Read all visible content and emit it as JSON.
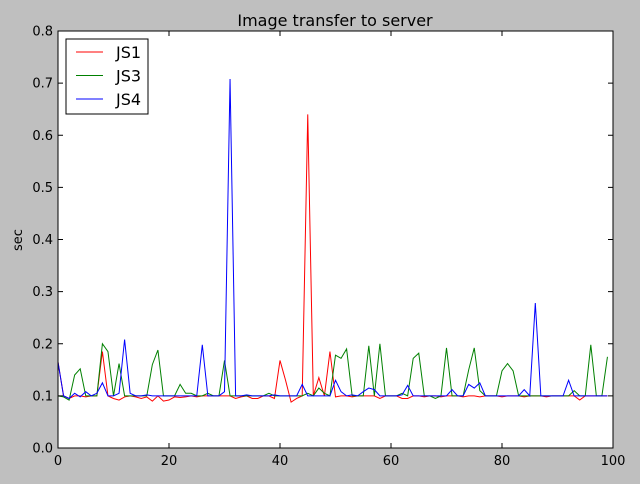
{
  "chart_data": {
    "type": "line",
    "title": "Image transfer to server",
    "xlabel": "",
    "ylabel": "sec",
    "xlim": [
      0,
      100
    ],
    "ylim": [
      0.0,
      0.8
    ],
    "xticks": [
      0,
      20,
      40,
      60,
      80,
      100
    ],
    "xtick_labels": [
      "0",
      "20",
      "40",
      "60",
      "80",
      "100"
    ],
    "yticks": [
      0.0,
      0.1,
      0.2,
      0.3,
      0.4,
      0.5,
      0.6,
      0.7,
      0.8
    ],
    "ytick_labels": [
      "0.0",
      "0.1",
      "0.2",
      "0.3",
      "0.4",
      "0.5",
      "0.6",
      "0.7",
      "0.8"
    ],
    "grid": false,
    "legend_position": "top-left",
    "x": [
      0,
      1,
      2,
      3,
      4,
      5,
      6,
      7,
      8,
      9,
      10,
      11,
      12,
      13,
      14,
      15,
      16,
      17,
      18,
      19,
      20,
      21,
      22,
      23,
      24,
      25,
      26,
      27,
      28,
      29,
      30,
      31,
      32,
      33,
      34,
      35,
      36,
      37,
      38,
      39,
      40,
      41,
      42,
      43,
      44,
      45,
      46,
      47,
      48,
      49,
      50,
      51,
      52,
      53,
      54,
      55,
      56,
      57,
      58,
      59,
      60,
      61,
      62,
      63,
      64,
      65,
      66,
      67,
      68,
      69,
      70,
      71,
      72,
      73,
      74,
      75,
      76,
      77,
      78,
      79,
      80,
      81,
      82,
      83,
      84,
      85,
      86,
      87,
      88,
      89,
      90,
      91,
      92,
      93,
      94,
      95,
      96,
      97,
      98,
      99
    ],
    "series": [
      {
        "name": "JS1",
        "color": "#ff0000",
        "values": [
          0.165,
          0.1,
          0.095,
          0.1,
          0.1,
          0.098,
          0.1,
          0.1,
          0.185,
          0.1,
          0.095,
          0.092,
          0.098,
          0.1,
          0.098,
          0.095,
          0.098,
          0.09,
          0.1,
          0.09,
          0.092,
          0.098,
          0.097,
          0.098,
          0.1,
          0.098,
          0.1,
          0.1,
          0.1,
          0.1,
          0.1,
          0.1,
          0.095,
          0.098,
          0.1,
          0.095,
          0.095,
          0.1,
          0.1,
          0.095,
          0.168,
          0.13,
          0.088,
          0.095,
          0.1,
          0.64,
          0.1,
          0.135,
          0.1,
          0.185,
          0.098,
          0.1,
          0.1,
          0.098,
          0.1,
          0.1,
          0.1,
          0.1,
          0.095,
          0.1,
          0.1,
          0.1,
          0.095,
          0.095,
          0.1,
          0.1,
          0.098,
          0.1,
          0.1,
          0.098,
          0.1,
          0.1,
          0.1,
          0.098,
          0.1,
          0.1,
          0.098,
          0.1,
          0.1,
          0.1,
          0.098,
          0.1,
          0.1,
          0.1,
          0.098,
          0.1,
          0.1,
          0.1,
          0.098,
          0.1,
          0.1,
          0.1,
          0.1,
          0.1,
          0.092,
          0.1,
          0.1,
          0.1,
          0.1,
          0.1
        ]
      },
      {
        "name": "JS3",
        "color": "#008000",
        "values": [
          0.1,
          0.098,
          0.092,
          0.14,
          0.152,
          0.1,
          0.1,
          0.1,
          0.2,
          0.185,
          0.1,
          0.162,
          0.1,
          0.1,
          0.1,
          0.1,
          0.1,
          0.16,
          0.188,
          0.1,
          0.1,
          0.1,
          0.122,
          0.105,
          0.105,
          0.1,
          0.1,
          0.105,
          0.1,
          0.1,
          0.168,
          0.1,
          0.1,
          0.1,
          0.1,
          0.1,
          0.1,
          0.1,
          0.105,
          0.1,
          0.1,
          0.1,
          0.1,
          0.1,
          0.1,
          0.105,
          0.1,
          0.115,
          0.105,
          0.1,
          0.178,
          0.172,
          0.19,
          0.1,
          0.1,
          0.1,
          0.196,
          0.1,
          0.2,
          0.1,
          0.1,
          0.1,
          0.105,
          0.1,
          0.172,
          0.182,
          0.1,
          0.1,
          0.095,
          0.1,
          0.192,
          0.1,
          0.1,
          0.1,
          0.15,
          0.192,
          0.11,
          0.1,
          0.1,
          0.1,
          0.148,
          0.162,
          0.148,
          0.1,
          0.1,
          0.1,
          0.1,
          0.1,
          0.1,
          0.1,
          0.1,
          0.1,
          0.1,
          0.11,
          0.1,
          0.1,
          0.198,
          0.1,
          0.1,
          0.175
        ]
      },
      {
        "name": "JS4",
        "color": "#0000ff",
        "values": [
          0.165,
          0.1,
          0.095,
          0.105,
          0.098,
          0.108,
          0.1,
          0.105,
          0.125,
          0.1,
          0.1,
          0.105,
          0.208,
          0.105,
          0.1,
          0.1,
          0.102,
          0.1,
          0.1,
          0.1,
          0.1,
          0.1,
          0.1,
          0.1,
          0.1,
          0.1,
          0.198,
          0.1,
          0.1,
          0.1,
          0.108,
          0.708,
          0.1,
          0.1,
          0.102,
          0.1,
          0.1,
          0.1,
          0.1,
          0.102,
          0.1,
          0.1,
          0.1,
          0.1,
          0.122,
          0.1,
          0.1,
          0.1,
          0.1,
          0.1,
          0.13,
          0.108,
          0.1,
          0.102,
          0.1,
          0.108,
          0.115,
          0.112,
          0.1,
          0.1,
          0.1,
          0.1,
          0.102,
          0.12,
          0.1,
          0.1,
          0.1,
          0.1,
          0.1,
          0.1,
          0.1,
          0.112,
          0.1,
          0.1,
          0.122,
          0.115,
          0.125,
          0.1,
          0.1,
          0.1,
          0.1,
          0.1,
          0.1,
          0.1,
          0.112,
          0.1,
          0.278,
          0.1,
          0.1,
          0.1,
          0.1,
          0.1,
          0.13,
          0.1,
          0.1,
          0.1,
          0.1,
          0.1,
          0.1,
          0.1
        ]
      }
    ]
  }
}
